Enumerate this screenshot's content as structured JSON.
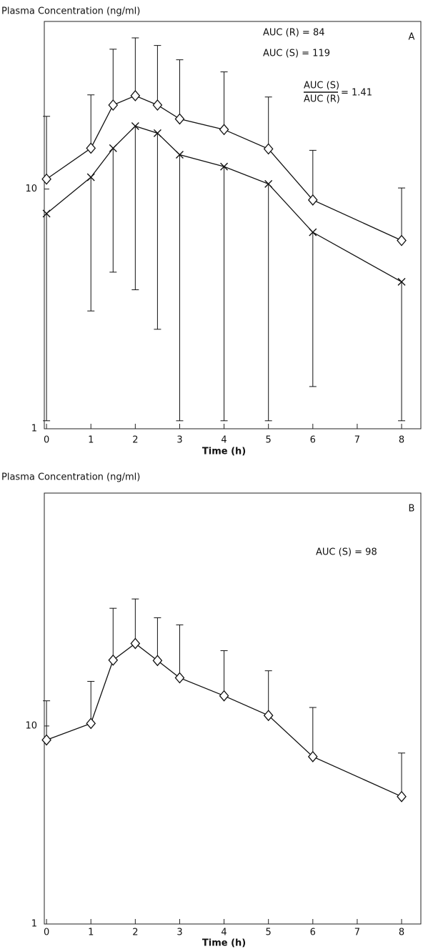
{
  "chart_data": [
    {
      "type": "line",
      "title": "Plasma Concentration (ng/ml)",
      "xlabel": "Time (h)",
      "panel_label": "A",
      "annotations": [
        "AUC (R) = 84",
        "AUC (S) = 119"
      ],
      "ratio": {
        "numerator": "AUC (S)",
        "denominator": "AUC (R)",
        "value_text": "= 1.41"
      },
      "log_y": true,
      "xlim": [
        -0.05,
        8.45
      ],
      "xticks": [
        0,
        1,
        2,
        3,
        4,
        5,
        6,
        7,
        8
      ],
      "ylim": [
        1,
        50
      ],
      "yticks": [
        1,
        10
      ],
      "x": [
        0,
        1,
        1.5,
        2,
        2.5,
        3,
        4,
        5,
        6,
        8
      ],
      "series": [
        {
          "marker": "diamond",
          "color": "#111111",
          "error_direction": "up",
          "values": [
            11.0,
            14.8,
            22.4,
            24.5,
            22.4,
            19.6,
            17.7,
            14.7,
            9.0,
            6.1
          ],
          "error_ends": [
            20.1,
            24.7,
            38.3,
            42.7,
            39.7,
            34.6,
            30.8,
            24.2,
            14.5,
            10.1
          ]
        },
        {
          "marker": "cross",
          "color": "#111111",
          "error_direction": "down",
          "values": [
            7.9,
            11.2,
            14.8,
            18.3,
            17.1,
            13.9,
            12.4,
            10.5,
            6.6,
            4.1
          ],
          "error_ends": [
            1.08,
            3.1,
            4.5,
            3.8,
            2.6,
            1.08,
            1.08,
            1.08,
            1.5,
            1.08
          ]
        }
      ]
    },
    {
      "type": "line",
      "title": "Plasma Concentration (ng/ml)",
      "xlabel": "Time (h)",
      "panel_label": "B",
      "annotations": [
        "AUC (S) = 98"
      ],
      "log_y": true,
      "xlim": [
        -0.05,
        8.45
      ],
      "xticks": [
        0,
        1,
        2,
        3,
        4,
        5,
        6,
        7,
        8
      ],
      "ylim": [
        1,
        150
      ],
      "yticks": [
        1,
        10
      ],
      "x": [
        0,
        1,
        1.5,
        2,
        2.5,
        3,
        4,
        5,
        6,
        8
      ],
      "series": [
        {
          "marker": "diamond",
          "color": "#111111",
          "error_direction": "up",
          "values": [
            8.5,
            10.3,
            21.5,
            26.1,
            21.4,
            17.5,
            14.2,
            11.3,
            7.0,
            4.4
          ],
          "error_ends": [
            13.4,
            16.8,
            39.3,
            43.8,
            35.2,
            32.4,
            24.0,
            19.0,
            12.4,
            7.3
          ]
        }
      ]
    }
  ]
}
